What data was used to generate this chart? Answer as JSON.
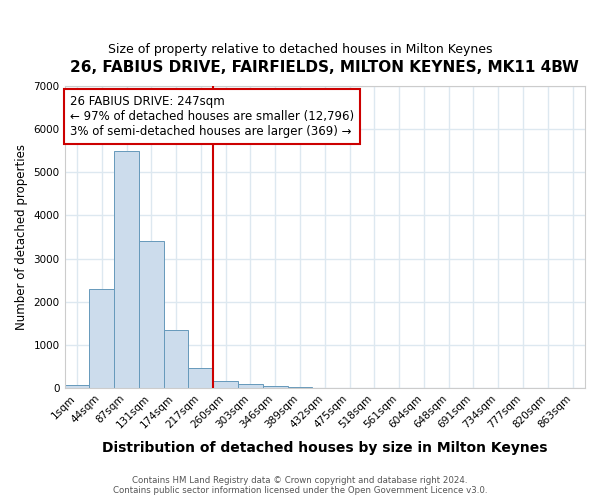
{
  "title": "26, FABIUS DRIVE, FAIRFIELDS, MILTON KEYNES, MK11 4BW",
  "subtitle": "Size of property relative to detached houses in Milton Keynes",
  "xlabel": "Distribution of detached houses by size in Milton Keynes",
  "ylabel": "Number of detached properties",
  "bar_labels": [
    "1sqm",
    "44sqm",
    "87sqm",
    "131sqm",
    "174sqm",
    "217sqm",
    "260sqm",
    "303sqm",
    "346sqm",
    "389sqm",
    "432sqm",
    "475sqm",
    "518sqm",
    "561sqm",
    "604sqm",
    "648sqm",
    "691sqm",
    "734sqm",
    "777sqm",
    "820sqm",
    "863sqm"
  ],
  "bar_values": [
    75,
    2300,
    5500,
    3400,
    1350,
    475,
    175,
    85,
    50,
    30,
    5,
    0,
    0,
    0,
    0,
    0,
    0,
    0,
    0,
    0,
    0
  ],
  "bar_color": "#ccdcec",
  "bar_edge_color": "#6699bb",
  "vline_x": 5.5,
  "vline_color": "#cc0000",
  "annotation_text": "26 FABIUS DRIVE: 247sqm\n← 97% of detached houses are smaller (12,796)\n3% of semi-detached houses are larger (369) →",
  "annotation_box_color": "#ffffff",
  "annotation_box_edge": "#cc0000",
  "ylim": [
    0,
    7000
  ],
  "footer_text": "Contains HM Land Registry data © Crown copyright and database right 2024.\nContains public sector information licensed under the Open Government Licence v3.0.",
  "bg_color": "#ffffff",
  "grid_color": "#dde8f0",
  "title_fontsize": 11,
  "subtitle_fontsize": 9
}
